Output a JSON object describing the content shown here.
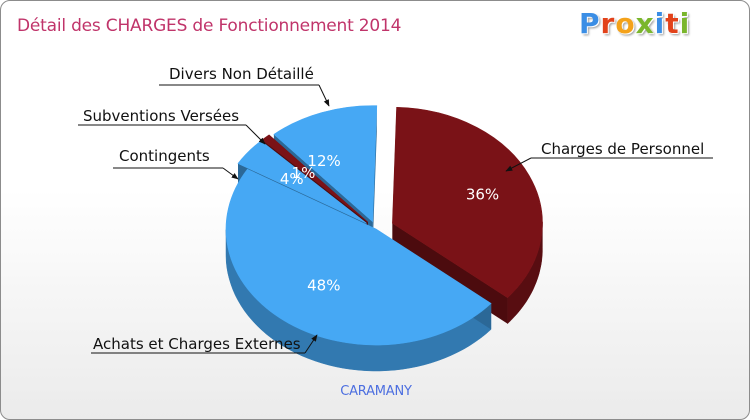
{
  "title": "Détail des CHARGES de Fonctionnement 2014",
  "logo": {
    "text": "Proxiti",
    "colors": [
      "#3b8ee5",
      "#e2421a",
      "#f4a21a",
      "#7ab62c",
      "#3b8ee5",
      "#e2421a",
      "#7ab62c"
    ]
  },
  "city": "CARAMANY",
  "chart_data": {
    "type": "pie",
    "title": "Détail des CHARGES de Fonctionnement 2014",
    "subtitle": "CARAMANY",
    "slices": [
      {
        "label": "Charges de Personnel",
        "value": 36,
        "display": "36%",
        "color": "#7a1217"
      },
      {
        "label": "Achats et Charges Externes",
        "value": 48,
        "display": "48%",
        "color": "#46a8f4"
      },
      {
        "label": "Contingents",
        "value": 4,
        "display": "4%",
        "color": "#46a8f4"
      },
      {
        "label": "Subventions Versées",
        "value": 1,
        "display": "1%",
        "color": "#7a1217"
      },
      {
        "label": "Divers Non Détaillé",
        "value": 12,
        "display": "12%",
        "color": "#46a8f4"
      }
    ]
  }
}
